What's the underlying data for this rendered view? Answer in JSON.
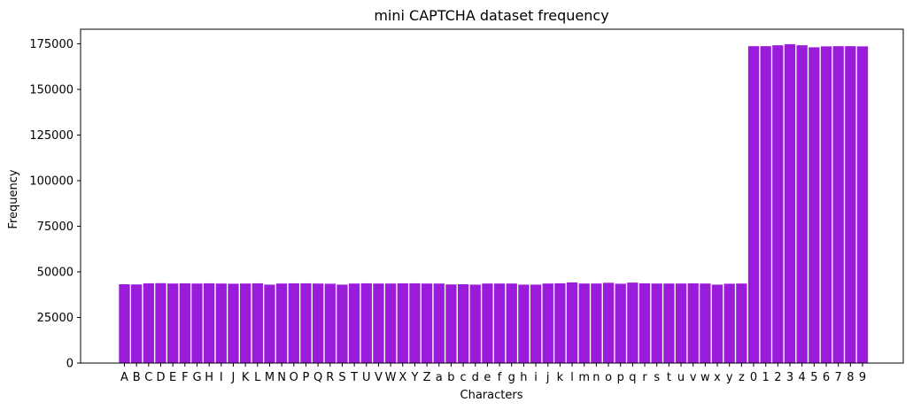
{
  "chart_data": {
    "type": "bar",
    "title": "mini CAPTCHA dataset frequency",
    "xlabel": "Characters",
    "ylabel": "Frequency",
    "ylim": [
      0,
      183000
    ],
    "yticks": [
      0,
      25000,
      50000,
      75000,
      100000,
      125000,
      150000,
      175000
    ],
    "grid": false,
    "bar_color": "#9b1bdb",
    "categories": [
      "A",
      "B",
      "C",
      "D",
      "E",
      "F",
      "G",
      "H",
      "I",
      "J",
      "K",
      "L",
      "M",
      "N",
      "O",
      "P",
      "Q",
      "R",
      "S",
      "T",
      "U",
      "V",
      "W",
      "X",
      "Y",
      "Z",
      "a",
      "b",
      "c",
      "d",
      "e",
      "f",
      "g",
      "h",
      "i",
      "j",
      "k",
      "l",
      "m",
      "n",
      "o",
      "p",
      "q",
      "r",
      "s",
      "t",
      "u",
      "v",
      "w",
      "x",
      "y",
      "z",
      "0",
      "1",
      "2",
      "3",
      "4",
      "5",
      "6",
      "7",
      "8",
      "9"
    ],
    "values": [
      43200,
      43100,
      43700,
      43800,
      43600,
      43700,
      43600,
      43700,
      43600,
      43500,
      43600,
      43700,
      43000,
      43600,
      43700,
      43700,
      43600,
      43500,
      43000,
      43600,
      43700,
      43600,
      43600,
      43700,
      43700,
      43600,
      43600,
      43100,
      43200,
      43000,
      43600,
      43600,
      43600,
      43000,
      43000,
      43600,
      43700,
      44200,
      43600,
      43600,
      44000,
      43500,
      44100,
      43700,
      43600,
      43600,
      43600,
      43700,
      43600,
      43000,
      43500,
      43600,
      173700,
      173700,
      174200,
      174800,
      174200,
      173100,
      173600,
      173700,
      173700,
      173600
    ]
  }
}
